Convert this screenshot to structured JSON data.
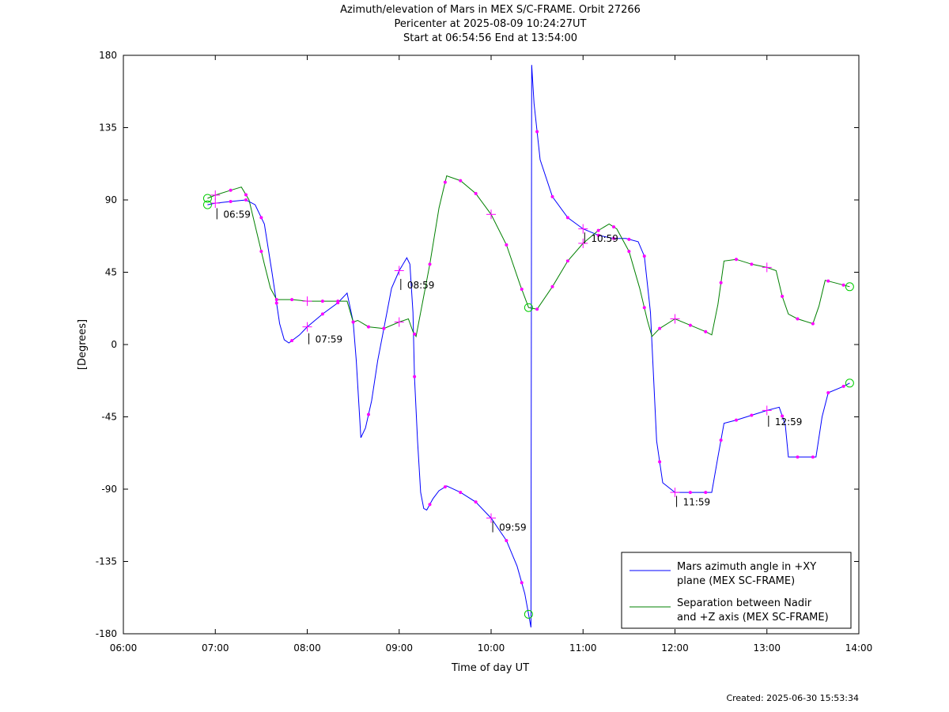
{
  "chart_data": {
    "type": "line",
    "title": "Azimuth/elevation of Mars in MEX S/C-FRAME.  Orbit 27266",
    "subtitle_1": "Pericenter at 2025-08-09 10:24:27UT",
    "subtitle_2": "Start at 06:54:56 End at 13:54:00",
    "xlabel": "Time of day UT",
    "ylabel": "[Degrees]",
    "xlim": [
      "06:00",
      "14:00"
    ],
    "ylim": [
      -180,
      180
    ],
    "x_ticks": [
      "06:00",
      "07:00",
      "08:00",
      "09:00",
      "10:00",
      "11:00",
      "12:00",
      "13:00",
      "14:00"
    ],
    "y_ticks": [
      "180",
      "135",
      "90",
      "45",
      "0",
      "-45",
      "-90",
      "-135",
      "-180"
    ],
    "grid": false,
    "legend_position": "bottom-right",
    "series": [
      {
        "name": "Mars azimuth angle in +XY plane (MEX SC-FRAME)",
        "legend_lines": [
          "Mars azimuth angle in +XY",
          "plane (MEX SC-FRAME)"
        ],
        "color": "#0000ff",
        "points": [
          [
            "06:54:56",
            87
          ],
          [
            "07:00",
            88
          ],
          [
            "07:10",
            89
          ],
          [
            "07:20",
            90
          ],
          [
            "07:26",
            87
          ],
          [
            "07:32",
            75
          ],
          [
            "07:37",
            45
          ],
          [
            "07:42",
            13
          ],
          [
            "07:45",
            3
          ],
          [
            "07:48",
            1
          ],
          [
            "07:55",
            6
          ],
          [
            "08:00",
            11
          ],
          [
            "08:10",
            19
          ],
          [
            "08:20",
            26
          ],
          [
            "08:26",
            32
          ],
          [
            "08:30",
            14
          ],
          [
            "08:32",
            -10
          ],
          [
            "08:35",
            -58
          ],
          [
            "08:38",
            -52
          ],
          [
            "08:42",
            -35
          ],
          [
            "08:46",
            -10
          ],
          [
            "08:50",
            10
          ],
          [
            "08:55",
            35
          ],
          [
            "09:00",
            46
          ],
          [
            "09:05",
            54
          ],
          [
            "09:07",
            50
          ],
          [
            "09:09",
            20
          ],
          [
            "09:10",
            -20
          ],
          [
            "09:12",
            -60
          ],
          [
            "09:14",
            -92
          ],
          [
            "09:16",
            -102
          ],
          [
            "09:18",
            -103
          ],
          [
            "09:22",
            -96
          ],
          [
            "09:26",
            -91
          ],
          [
            "09:31",
            -88
          ],
          [
            "09:40",
            -92
          ],
          [
            "09:50",
            -98
          ],
          [
            "10:00",
            -108
          ],
          [
            "10:10",
            -122
          ],
          [
            "10:17",
            -138
          ],
          [
            "10:22",
            -155
          ],
          [
            "10:26",
            -176
          ],
          [
            "10:26:30",
            174
          ],
          [
            "10:28",
            150
          ],
          [
            "10:32",
            115
          ],
          [
            "10:40",
            92
          ],
          [
            "10:50",
            79
          ],
          [
            "11:00",
            72
          ],
          [
            "11:10",
            68
          ],
          [
            "11:20",
            66
          ],
          [
            "11:28",
            66
          ],
          [
            "11:36",
            64
          ],
          [
            "11:40",
            55
          ],
          [
            "11:44",
            20
          ],
          [
            "11:46",
            -20
          ],
          [
            "11:48",
            -60
          ],
          [
            "11:52",
            -86
          ],
          [
            "12:00",
            -92
          ],
          [
            "12:10",
            -92
          ],
          [
            "12:24",
            -92
          ],
          [
            "12:28",
            -70
          ],
          [
            "12:32",
            -49
          ],
          [
            "12:40",
            -47
          ],
          [
            "12:50",
            -44
          ],
          [
            "13:00",
            -41
          ],
          [
            "13:08",
            -39
          ],
          [
            "13:12",
            -50
          ],
          [
            "13:14",
            -70
          ],
          [
            "13:22",
            -70
          ],
          [
            "13:32",
            -70
          ],
          [
            "13:36",
            -45
          ],
          [
            "13:40",
            -30
          ],
          [
            "13:50",
            -26
          ],
          [
            "13:54",
            -24
          ]
        ]
      },
      {
        "name": "Separation between Nadir and +Z axis (MEX SC-FRAME)",
        "legend_lines": [
          "Separation between Nadir",
          "and +Z axis (MEX SC-FRAME)"
        ],
        "color": "#008000",
        "points": [
          [
            "06:54:56",
            91
          ],
          [
            "07:00",
            93
          ],
          [
            "07:10",
            96
          ],
          [
            "07:17",
            98
          ],
          [
            "07:22",
            90
          ],
          [
            "07:27",
            70
          ],
          [
            "07:32",
            50
          ],
          [
            "07:36",
            35
          ],
          [
            "07:40",
            28
          ],
          [
            "07:50",
            28
          ],
          [
            "08:00",
            27
          ],
          [
            "08:10",
            27
          ],
          [
            "08:20",
            27
          ],
          [
            "08:26",
            27
          ],
          [
            "08:30",
            14
          ],
          [
            "08:33",
            15
          ],
          [
            "08:40",
            11
          ],
          [
            "08:50",
            10
          ],
          [
            "09:00",
            14
          ],
          [
            "09:06",
            16
          ],
          [
            "09:09",
            8
          ],
          [
            "09:11",
            5
          ],
          [
            "09:14",
            20
          ],
          [
            "09:20",
            50
          ],
          [
            "09:26",
            85
          ],
          [
            "09:31",
            105
          ],
          [
            "09:40",
            102
          ],
          [
            "09:50",
            94
          ],
          [
            "10:00",
            81
          ],
          [
            "10:10",
            62
          ],
          [
            "10:19",
            37
          ],
          [
            "10:24:27",
            23
          ],
          [
            "10:30",
            22
          ],
          [
            "10:40",
            36
          ],
          [
            "10:50",
            52
          ],
          [
            "11:00",
            63
          ],
          [
            "11:10",
            71
          ],
          [
            "11:17",
            75
          ],
          [
            "11:22",
            72
          ],
          [
            "11:30",
            58
          ],
          [
            "11:37",
            35
          ],
          [
            "11:42",
            15
          ],
          [
            "11:45",
            5
          ],
          [
            "11:50",
            10
          ],
          [
            "12:00",
            16
          ],
          [
            "12:10",
            12
          ],
          [
            "12:20",
            8
          ],
          [
            "12:24",
            6
          ],
          [
            "12:28",
            25
          ],
          [
            "12:32",
            52
          ],
          [
            "12:40",
            53
          ],
          [
            "12:50",
            50
          ],
          [
            "13:00",
            48
          ],
          [
            "13:06",
            46
          ],
          [
            "13:10",
            30
          ],
          [
            "13:14",
            19
          ],
          [
            "13:20",
            16
          ],
          [
            "13:30",
            13
          ],
          [
            "13:34",
            24
          ],
          [
            "13:38",
            40
          ],
          [
            "13:46",
            38
          ],
          [
            "13:54",
            36
          ]
        ]
      }
    ],
    "hour_labels": [
      {
        "time": "06:59",
        "text": "06:59",
        "series": 0
      },
      {
        "time": "07:59",
        "text": "07:59",
        "series": 0
      },
      {
        "time": "08:59",
        "text": "08:59",
        "series": 0
      },
      {
        "time": "09:59",
        "text": "09:59",
        "series": 0
      },
      {
        "time": "10:59",
        "text": "10:59",
        "series": 0
      },
      {
        "time": "11:59",
        "text": "11:59",
        "series": 0
      },
      {
        "time": "12:59",
        "text": "12:59",
        "series": 0
      }
    ],
    "marker_color": "#ff00ff",
    "circle_color": "#00cc00"
  },
  "footer": {
    "created": "Created: 2025-06-30 15:53:34"
  }
}
